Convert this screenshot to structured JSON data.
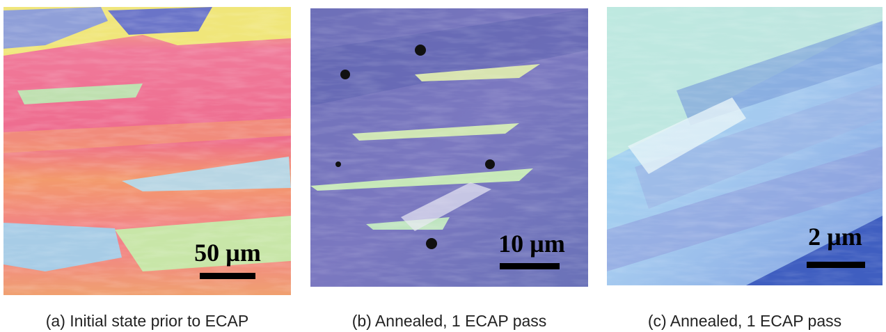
{
  "panels": [
    {
      "scale_bar": "50 µm",
      "caption": "(a) Initial state prior to ECAP"
    },
    {
      "scale_bar": "10 µm",
      "caption": "(b) Annealed, 1 ECAP pass"
    },
    {
      "scale_bar": "2 µm",
      "caption": "(c) Annealed, 1 ECAP pass"
    }
  ]
}
